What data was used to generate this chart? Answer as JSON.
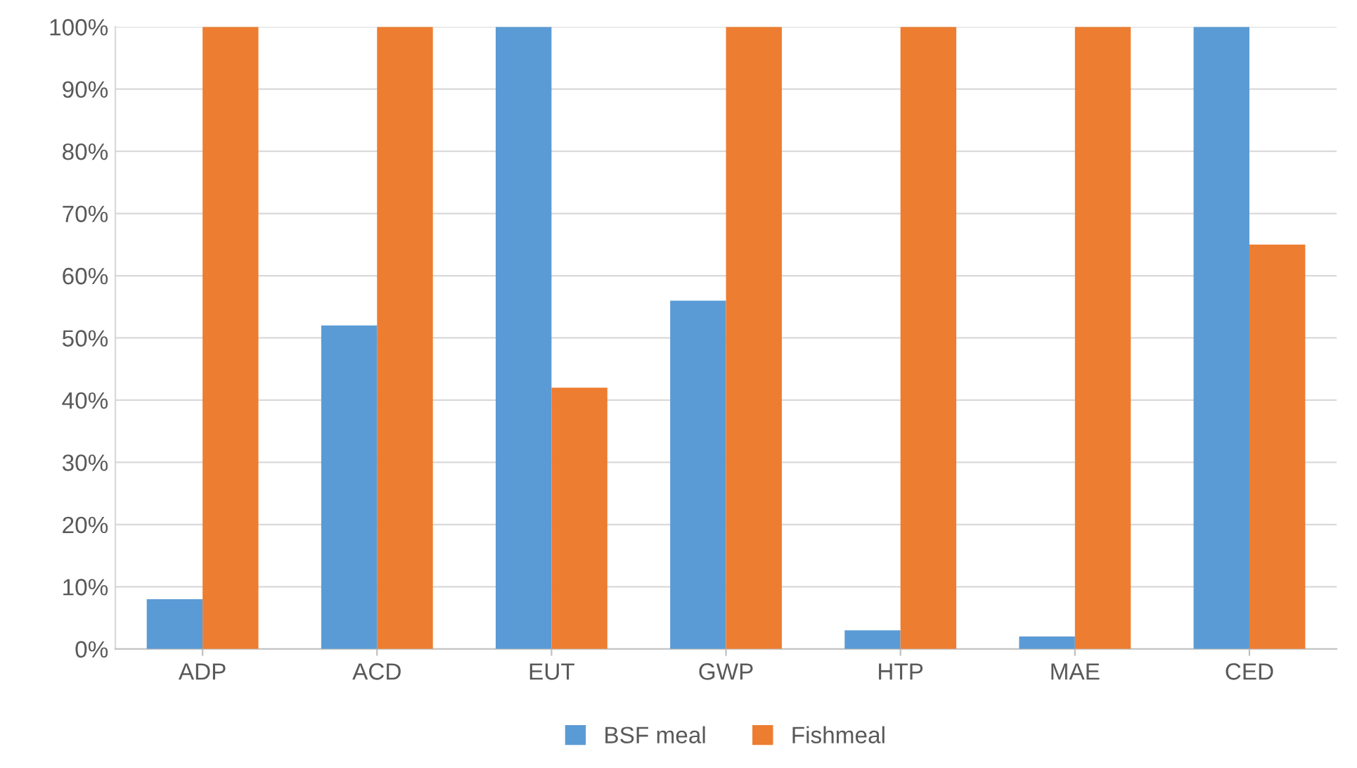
{
  "chart_data": {
    "type": "bar",
    "categories": [
      "ADP",
      "ACD",
      "EUT",
      "GWP",
      "HTP",
      "MAE",
      "CED"
    ],
    "series": [
      {
        "name": "BSF meal",
        "color": "#5b9bd5",
        "values": [
          8,
          52,
          100,
          56,
          3,
          2,
          100
        ]
      },
      {
        "name": "Fishmeal",
        "color": "#ed7d31",
        "values": [
          100,
          100,
          42,
          100,
          100,
          100,
          65
        ]
      }
    ],
    "ylim": [
      0,
      100
    ],
    "yticks": [
      {
        "value": 0,
        "label": "0%"
      },
      {
        "value": 10,
        "label": "10%"
      },
      {
        "value": 20,
        "label": "20%"
      },
      {
        "value": 30,
        "label": "30%"
      },
      {
        "value": 40,
        "label": "40%"
      },
      {
        "value": 50,
        "label": "50%"
      },
      {
        "value": 60,
        "label": "60%"
      },
      {
        "value": 70,
        "label": "70%"
      },
      {
        "value": 80,
        "label": "80%"
      },
      {
        "value": 90,
        "label": "90%"
      },
      {
        "value": 100,
        "label": "100%"
      }
    ],
    "grid": "y",
    "legend": "bottom"
  }
}
